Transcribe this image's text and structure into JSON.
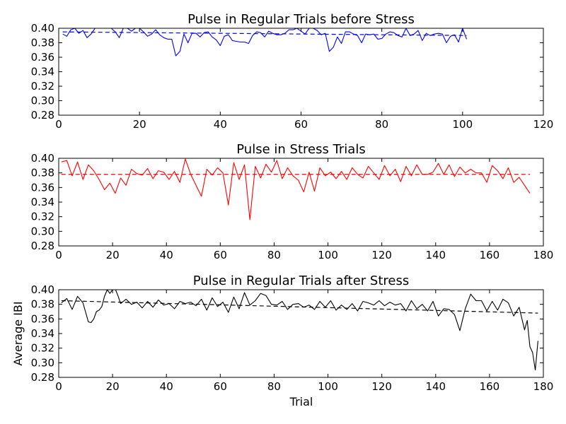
{
  "figure": {
    "ylabel": "Average IBI",
    "xlabel": "Trial"
  },
  "chart_data": [
    {
      "type": "line",
      "title": "Pulse in Regular Trials before Stress",
      "xlabel": "",
      "ylabel": "",
      "xlim": [
        0,
        120
      ],
      "ylim": [
        0.28,
        0.4
      ],
      "xticks": [
        0,
        20,
        40,
        60,
        80,
        100,
        120
      ],
      "yticks": [
        0.28,
        0.3,
        0.32,
        0.34,
        0.36,
        0.38,
        0.4
      ],
      "grid": false,
      "color": "#0000ff",
      "trend": [
        [
          1,
          0.395
        ],
        [
          101,
          0.39
        ]
      ],
      "series": [
        {
          "x": [
            1,
            2,
            3,
            4,
            5,
            6,
            7,
            8,
            9,
            10,
            11,
            12,
            13,
            14,
            15,
            16,
            17,
            18,
            19,
            20,
            21,
            22,
            23,
            24,
            25,
            26,
            27,
            28,
            29,
            30,
            31,
            32,
            33,
            34,
            35,
            36,
            37,
            38,
            39,
            40,
            41,
            42,
            43,
            44,
            45,
            46,
            47,
            48,
            49,
            50,
            51,
            52,
            53,
            54,
            55,
            56,
            57,
            58,
            59,
            60,
            61,
            62,
            63,
            64,
            65,
            66,
            67,
            68,
            69,
            70,
            71,
            72,
            73,
            74,
            75,
            76,
            77,
            78,
            79,
            80,
            81,
            82,
            83,
            84,
            85,
            86,
            87,
            88,
            89,
            90,
            91,
            92,
            93,
            94,
            95,
            96,
            97,
            98,
            99,
            100,
            101
          ],
          "y": [
            0.392,
            0.389,
            0.398,
            0.4,
            0.393,
            0.397,
            0.387,
            0.392,
            0.4,
            0.4,
            0.4,
            0.4,
            0.4,
            0.395,
            0.387,
            0.4,
            0.4,
            0.396,
            0.4,
            0.4,
            0.395,
            0.389,
            0.392,
            0.398,
            0.391,
            0.387,
            0.385,
            0.385,
            0.362,
            0.368,
            0.392,
            0.38,
            0.393,
            0.393,
            0.388,
            0.394,
            0.395,
            0.388,
            0.384,
            0.376,
            0.389,
            0.391,
            0.383,
            0.382,
            0.381,
            0.381,
            0.379,
            0.39,
            0.395,
            0.394,
            0.388,
            0.396,
            0.393,
            0.391,
            0.391,
            0.393,
            0.398,
            0.398,
            0.4,
            0.396,
            0.392,
            0.4,
            0.4,
            0.397,
            0.391,
            0.393,
            0.368,
            0.374,
            0.388,
            0.379,
            0.395,
            0.395,
            0.392,
            0.39,
            0.38,
            0.392,
            0.391,
            0.392,
            0.385,
            0.386,
            0.392,
            0.395,
            0.394,
            0.39,
            0.388,
            0.4,
            0.39,
            0.392,
            0.397,
            0.383,
            0.393,
            0.39,
            0.392,
            0.393,
            0.392,
            0.38,
            0.389,
            0.391,
            0.381,
            0.4,
            0.385
          ]
        }
      ]
    },
    {
      "type": "line",
      "title": "Pulse in Stress Trials",
      "xlabel": "",
      "ylabel": "",
      "xlim": [
        0,
        180
      ],
      "ylim": [
        0.28,
        0.4
      ],
      "xticks": [
        0,
        20,
        40,
        60,
        80,
        100,
        120,
        140,
        160,
        180
      ],
      "yticks": [
        0.28,
        0.3,
        0.32,
        0.34,
        0.36,
        0.38,
        0.4
      ],
      "grid": false,
      "color": "#ff0000",
      "trend": [
        [
          1,
          0.378
        ],
        [
          175,
          0.378
        ]
      ],
      "series": [
        {
          "x": [
            1,
            3,
            5,
            7,
            9,
            11,
            13,
            15,
            17,
            19,
            21,
            23,
            25,
            27,
            29,
            31,
            33,
            35,
            37,
            39,
            41,
            43,
            45,
            47,
            49,
            51,
            53,
            55,
            57,
            59,
            61,
            63,
            65,
            67,
            69,
            71,
            73,
            75,
            77,
            79,
            81,
            83,
            85,
            87,
            89,
            91,
            93,
            95,
            97,
            99,
            101,
            103,
            105,
            107,
            109,
            111,
            113,
            115,
            117,
            119,
            121,
            123,
            125,
            127,
            129,
            131,
            133,
            135,
            137,
            139,
            141,
            143,
            145,
            147,
            149,
            151,
            153,
            155,
            157,
            159,
            161,
            163,
            165,
            167,
            169,
            171,
            173,
            175
          ],
          "y": [
            0.395,
            0.397,
            0.376,
            0.395,
            0.371,
            0.391,
            0.383,
            0.371,
            0.357,
            0.366,
            0.352,
            0.373,
            0.363,
            0.385,
            0.379,
            0.377,
            0.386,
            0.372,
            0.383,
            0.381,
            0.371,
            0.382,
            0.367,
            0.399,
            0.378,
            0.363,
            0.348,
            0.385,
            0.377,
            0.387,
            0.38,
            0.336,
            0.394,
            0.371,
            0.391,
            0.316,
            0.389,
            0.373,
            0.392,
            0.381,
            0.397,
            0.372,
            0.387,
            0.376,
            0.37,
            0.354,
            0.381,
            0.355,
            0.387,
            0.376,
            0.381,
            0.372,
            0.382,
            0.371,
            0.387,
            0.378,
            0.373,
            0.389,
            0.38,
            0.371,
            0.39,
            0.376,
            0.385,
            0.368,
            0.389,
            0.376,
            0.391,
            0.378,
            0.378,
            0.381,
            0.393,
            0.378,
            0.391,
            0.375,
            0.388,
            0.38,
            0.385,
            0.38,
            0.38,
            0.367,
            0.39,
            0.383,
            0.372,
            0.387,
            0.367,
            0.374,
            0.363,
            0.352
          ]
        }
      ]
    },
    {
      "type": "line",
      "title": "Pulse in Regular Trials after Stress",
      "xlabel": "Trial",
      "ylabel": "Average IBI",
      "xlim": [
        0,
        180
      ],
      "ylim": [
        0.28,
        0.4
      ],
      "xticks": [
        0,
        20,
        40,
        60,
        80,
        100,
        120,
        140,
        160,
        180
      ],
      "yticks": [
        0.28,
        0.3,
        0.32,
        0.34,
        0.36,
        0.38,
        0.4
      ],
      "grid": false,
      "color": "#000000",
      "trend": [
        [
          1,
          0.385
        ],
        [
          178,
          0.368
        ]
      ],
      "series": [
        {
          "x": [
            1,
            3,
            5,
            7,
            9,
            11,
            12,
            13,
            14,
            15,
            16,
            17,
            18,
            19,
            20,
            21,
            22,
            23,
            25,
            27,
            29,
            31,
            33,
            35,
            37,
            39,
            41,
            43,
            45,
            47,
            49,
            51,
            53,
            55,
            57,
            59,
            61,
            63,
            65,
            67,
            69,
            71,
            73,
            75,
            77,
            79,
            81,
            83,
            85,
            87,
            89,
            91,
            93,
            95,
            97,
            99,
            101,
            103,
            105,
            107,
            109,
            111,
            113,
            115,
            117,
            119,
            121,
            123,
            125,
            127,
            129,
            131,
            133,
            135,
            137,
            139,
            141,
            143,
            145,
            147,
            149,
            151,
            153,
            155,
            157,
            159,
            161,
            163,
            165,
            167,
            169,
            171,
            173,
            174,
            175,
            176,
            177,
            178
          ],
          "y": [
            0.382,
            0.388,
            0.373,
            0.391,
            0.382,
            0.356,
            0.355,
            0.36,
            0.37,
            0.372,
            0.377,
            0.391,
            0.4,
            0.395,
            0.4,
            0.401,
            0.392,
            0.381,
            0.387,
            0.38,
            0.383,
            0.375,
            0.384,
            0.376,
            0.386,
            0.379,
            0.381,
            0.374,
            0.384,
            0.381,
            0.383,
            0.378,
            0.387,
            0.372,
            0.389,
            0.377,
            0.383,
            0.369,
            0.39,
            0.374,
            0.396,
            0.379,
            0.385,
            0.395,
            0.392,
            0.38,
            0.379,
            0.384,
            0.373,
            0.38,
            0.381,
            0.376,
            0.379,
            0.373,
            0.384,
            0.376,
            0.385,
            0.372,
            0.379,
            0.373,
            0.381,
            0.371,
            0.384,
            0.382,
            0.379,
            0.385,
            0.378,
            0.383,
            0.379,
            0.381,
            0.371,
            0.385,
            0.374,
            0.38,
            0.371,
            0.384,
            0.364,
            0.374,
            0.373,
            0.366,
            0.344,
            0.374,
            0.394,
            0.385,
            0.385,
            0.371,
            0.384,
            0.372,
            0.387,
            0.382,
            0.364,
            0.376,
            0.345,
            0.358,
            0.322,
            0.314,
            0.29,
            0.33
          ]
        }
      ]
    }
  ]
}
